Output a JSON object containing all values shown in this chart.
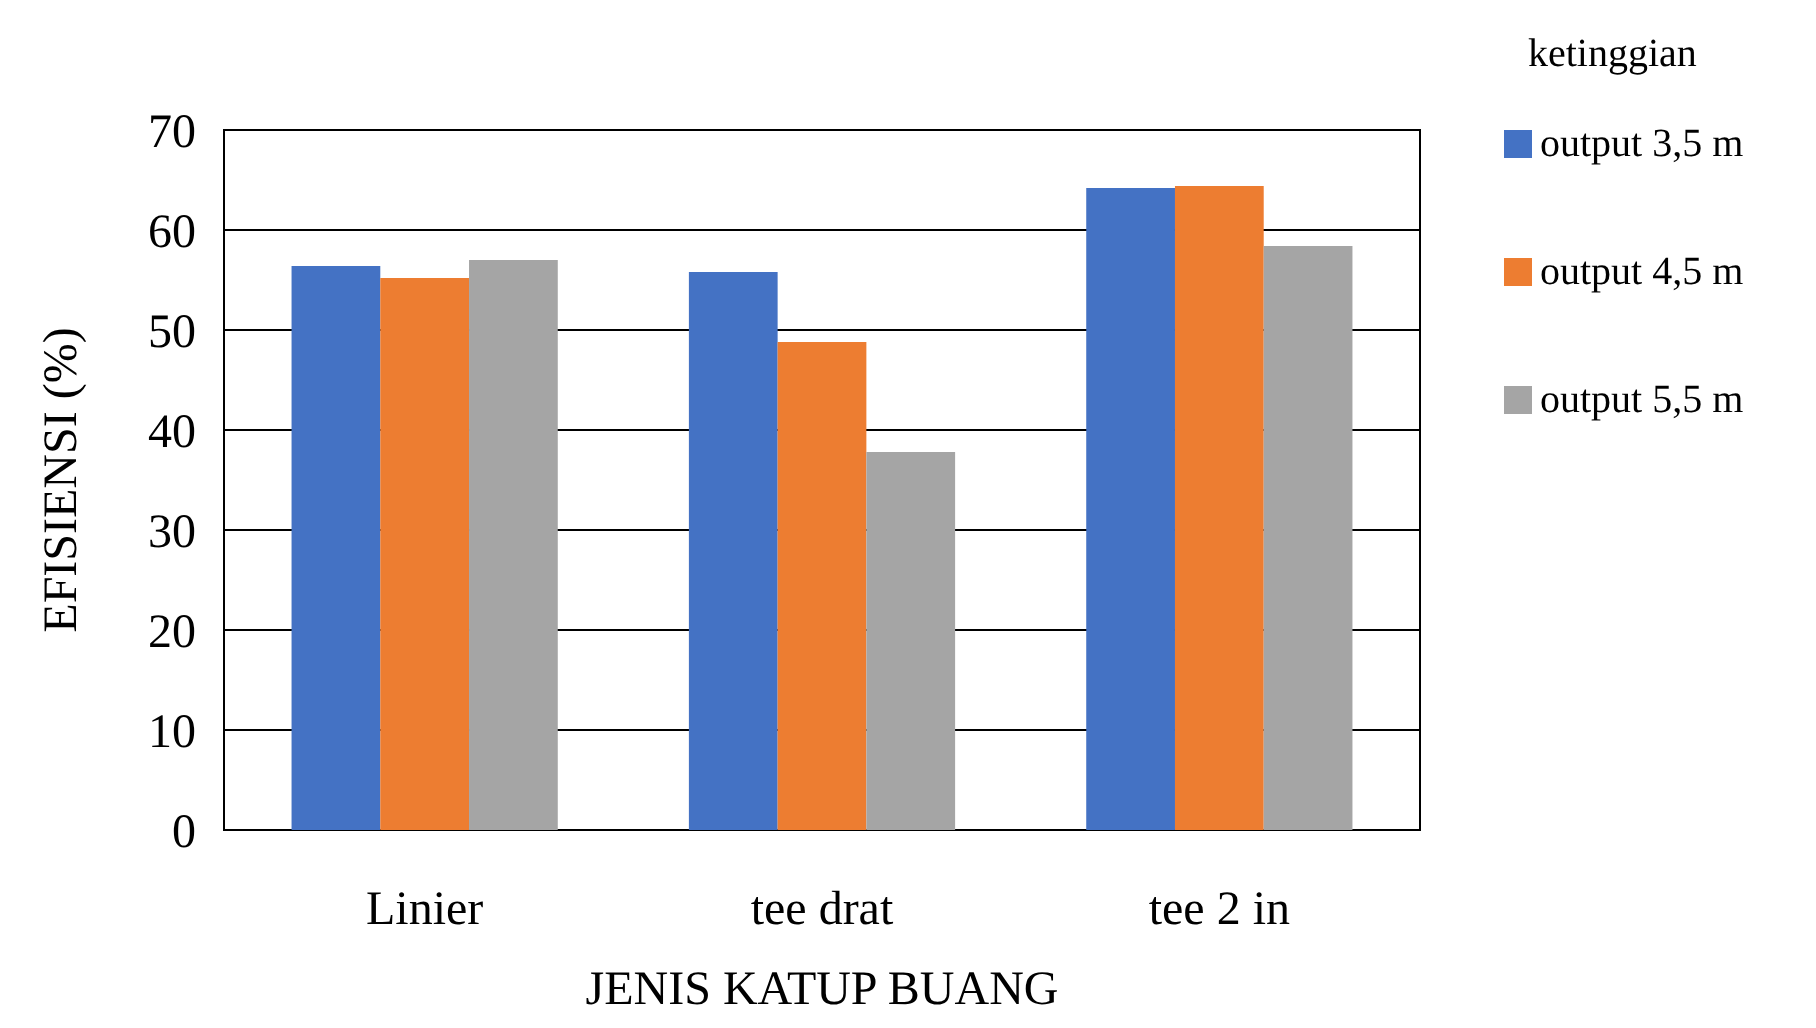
{
  "chart_data": {
    "type": "bar",
    "xlabel": "JENIS KATUP BUANG",
    "ylabel": "EFISIENSI (%)",
    "legend_title": "ketinggian",
    "categories": [
      "Linier",
      "tee drat",
      "tee 2 in"
    ],
    "series": [
      {
        "name": "output 3,5 m",
        "color": "#4472c4",
        "values": [
          56.4,
          55.8,
          64.2
        ]
      },
      {
        "name": "output 4,5 m",
        "color": "#ed7d31",
        "values": [
          55.2,
          48.8,
          64.4
        ]
      },
      {
        "name": "output 5,5 m",
        "color": "#a5a5a5",
        "values": [
          57.0,
          37.8,
          58.4
        ]
      }
    ],
    "ylim": [
      0,
      70
    ],
    "yticks": [
      0,
      10,
      20,
      30,
      40,
      50,
      60,
      70
    ],
    "grid": "y",
    "legend": "right"
  }
}
